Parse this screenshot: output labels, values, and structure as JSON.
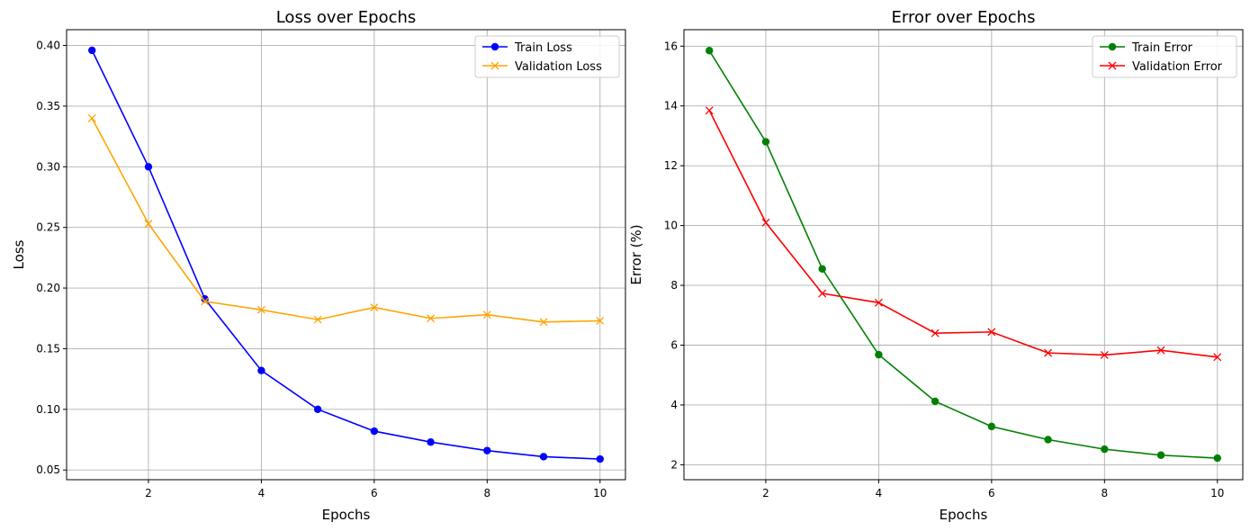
{
  "chart_data": [
    {
      "type": "line",
      "title": "Loss over Epochs",
      "xlabel": "Epochs",
      "ylabel": "Loss",
      "x": [
        1,
        2,
        3,
        4,
        5,
        6,
        7,
        8,
        9,
        10
      ],
      "xlim": [
        0.55,
        10.45
      ],
      "ylim": [
        0.042,
        0.413
      ],
      "xticks": [
        2,
        4,
        6,
        8,
        10
      ],
      "xtick_labels": [
        "2",
        "4",
        "6",
        "8",
        "10"
      ],
      "yticks": [
        0.05,
        0.1,
        0.15,
        0.2,
        0.25,
        0.3,
        0.35,
        0.4
      ],
      "ytick_labels": [
        "0.05",
        "0.10",
        "0.15",
        "0.20",
        "0.25",
        "0.30",
        "0.35",
        "0.40"
      ],
      "grid": true,
      "legend": "top-right",
      "series": [
        {
          "name": "Train Loss",
          "color": "#0000ff",
          "marker": "circle",
          "values": [
            0.396,
            0.3,
            0.191,
            0.132,
            0.1,
            0.082,
            0.073,
            0.066,
            0.061,
            0.059
          ]
        },
        {
          "name": "Validation Loss",
          "color": "#ffa500",
          "marker": "x",
          "values": [
            0.34,
            0.253,
            0.189,
            0.182,
            0.174,
            0.184,
            0.175,
            0.178,
            0.172,
            0.173
          ]
        }
      ]
    },
    {
      "type": "line",
      "title": "Error over Epochs",
      "xlabel": "Epochs",
      "ylabel": "Error (%)",
      "x": [
        1,
        2,
        3,
        4,
        5,
        6,
        7,
        8,
        9,
        10
      ],
      "xlim": [
        0.55,
        10.45
      ],
      "ylim": [
        1.5,
        16.55
      ],
      "xticks": [
        2,
        4,
        6,
        8,
        10
      ],
      "xtick_labels": [
        "2",
        "4",
        "6",
        "8",
        "10"
      ],
      "yticks": [
        2,
        4,
        6,
        8,
        10,
        12,
        14,
        16
      ],
      "ytick_labels": [
        "2",
        "4",
        "6",
        "8",
        "10",
        "12",
        "14",
        "16"
      ],
      "grid": true,
      "legend": "top-right",
      "series": [
        {
          "name": "Train Error",
          "color": "#008000",
          "marker": "circle",
          "values": [
            15.85,
            12.8,
            8.55,
            5.68,
            4.12,
            3.28,
            2.84,
            2.52,
            2.32,
            2.22
          ]
        },
        {
          "name": "Validation Error",
          "color": "#ff0000",
          "marker": "x",
          "values": [
            13.85,
            10.1,
            7.73,
            7.42,
            6.4,
            6.44,
            5.74,
            5.67,
            5.83,
            5.6
          ]
        }
      ]
    }
  ]
}
